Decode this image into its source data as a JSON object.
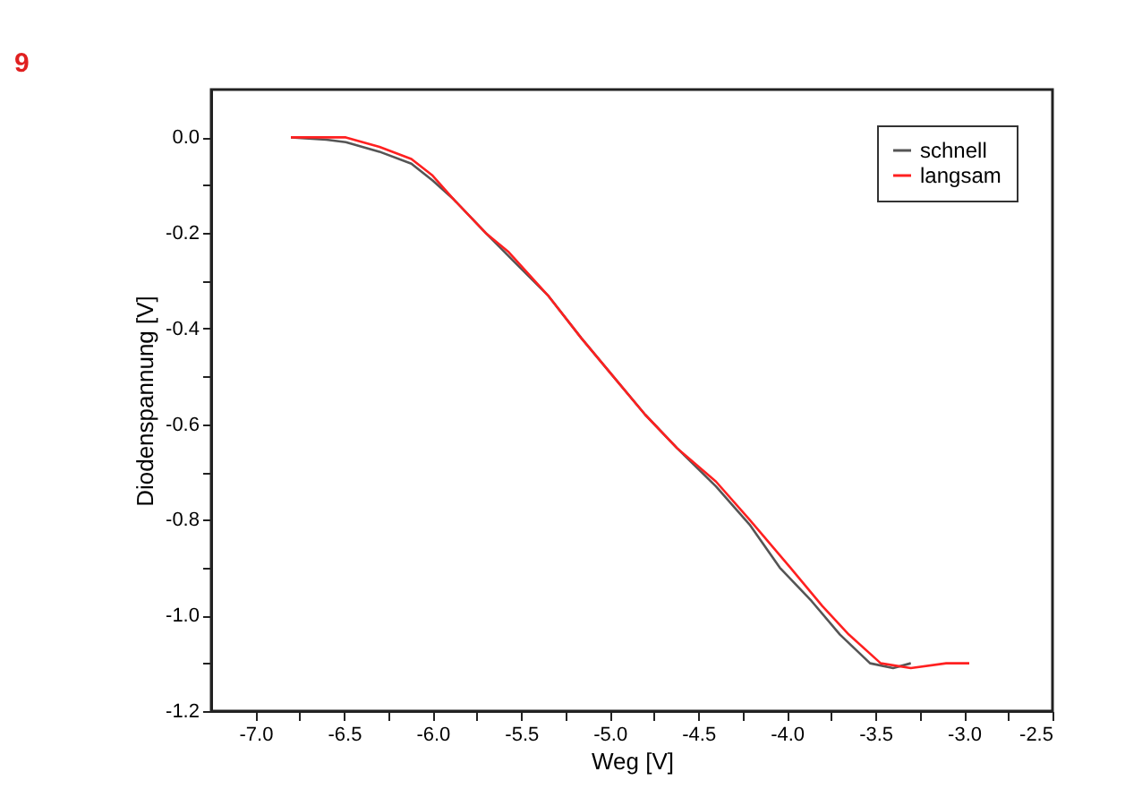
{
  "chart_data": {
    "type": "line",
    "xlabel": "Weg [V]",
    "ylabel": "Diodenspannung [V]",
    "annotations": [
      "9"
    ],
    "xlim": [
      -7.25,
      -2.5
    ],
    "ylim": [
      -1.2,
      0.1
    ],
    "xticks": [
      {
        "value": -7,
        "label": "-7.0"
      },
      {
        "value": -6.75,
        "label": null
      },
      {
        "value": -6.5,
        "label": "-6.5"
      },
      {
        "value": -6.25,
        "label": null
      },
      {
        "value": -6,
        "label": "-6.0"
      },
      {
        "value": -5.75,
        "label": null
      },
      {
        "value": -5.5,
        "label": "-5.5"
      },
      {
        "value": -5.25,
        "label": null
      },
      {
        "value": -5,
        "label": "-5.0"
      },
      {
        "value": -4.75,
        "label": null
      },
      {
        "value": -4.5,
        "label": "-4.5"
      },
      {
        "value": -4.25,
        "label": null
      },
      {
        "value": -4,
        "label": "-4.0"
      },
      {
        "value": -3.75,
        "label": null
      },
      {
        "value": -3.5,
        "label": "-3.5"
      },
      {
        "value": -3.25,
        "label": null
      },
      {
        "value": -3,
        "label": "-3.0"
      },
      {
        "value": -2.75,
        "label": null
      },
      {
        "value": -2.5,
        "label": "-2.5"
      }
    ],
    "yticks": [
      {
        "value": 0,
        "label": "0.0"
      },
      {
        "value": -0.1,
        "label": null
      },
      {
        "value": -0.2,
        "label": "-0.2"
      },
      {
        "value": -0.3,
        "label": null
      },
      {
        "value": -0.4,
        "label": "-0.4"
      },
      {
        "value": -0.5,
        "label": null
      },
      {
        "value": -0.6,
        "label": "-0.6"
      },
      {
        "value": -0.7,
        "label": null
      },
      {
        "value": -0.8,
        "label": "-0.8"
      },
      {
        "value": -0.9,
        "label": null
      },
      {
        "value": -1,
        "label": "-1.0"
      },
      {
        "value": -1.1,
        "label": null
      },
      {
        "value": -1.2,
        "label": "-1.2"
      }
    ],
    "grid": false,
    "legend": "top right",
    "line_style": "solid",
    "marker": "none",
    "series": [
      {
        "name": "schnell",
        "color": "#555555",
        "x": [
          -6.8,
          -6.6,
          -6.49,
          -6.3,
          -6.12,
          -6.0,
          -5.88,
          -5.7,
          -5.54,
          -5.35,
          -5.16,
          -4.98,
          -4.8,
          -4.62,
          -4.4,
          -4.21,
          -4.04,
          -3.86,
          -3.7,
          -3.53,
          -3.4,
          -3.3
        ],
        "values": [
          0.0,
          -0.005,
          -0.01,
          -0.03,
          -0.055,
          -0.09,
          -0.13,
          -0.2,
          -0.26,
          -0.33,
          -0.42,
          -0.5,
          -0.58,
          -0.65,
          -0.73,
          -0.81,
          -0.9,
          -0.97,
          -1.04,
          -1.1,
          -1.11,
          -1.1
        ]
      },
      {
        "name": "langsam",
        "color": "#ff2020",
        "x": [
          -6.8,
          -6.6,
          -6.49,
          -6.3,
          -6.12,
          -6.0,
          -5.88,
          -5.7,
          -5.57,
          -5.35,
          -5.16,
          -4.98,
          -4.8,
          -4.62,
          -4.4,
          -4.21,
          -3.98,
          -3.8,
          -3.65,
          -3.47,
          -3.3,
          -3.1,
          -2.97
        ],
        "values": [
          0.0,
          0.0,
          0.0,
          -0.02,
          -0.045,
          -0.08,
          -0.13,
          -0.2,
          -0.24,
          -0.33,
          -0.42,
          -0.5,
          -0.58,
          -0.65,
          -0.72,
          -0.8,
          -0.9,
          -0.98,
          -1.04,
          -1.1,
          -1.11,
          -1.1,
          -1.1
        ]
      }
    ]
  }
}
